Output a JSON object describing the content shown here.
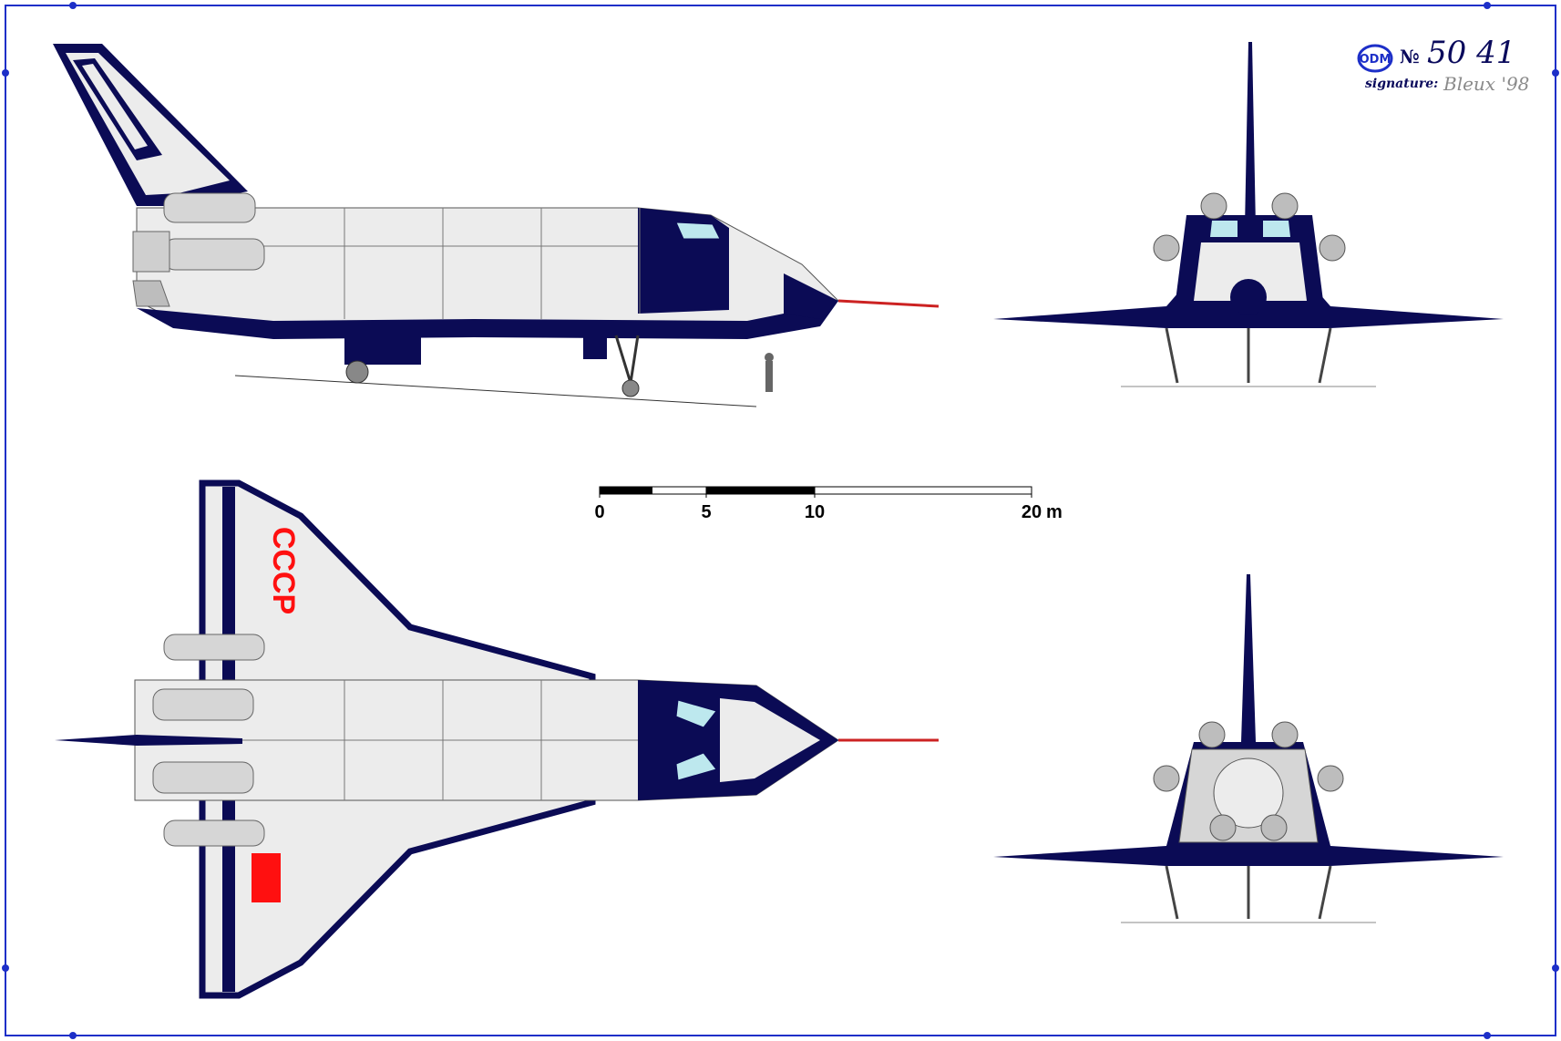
{
  "header": {
    "logo_text": "ODM",
    "number_prefix": "№",
    "number": "50 41",
    "signature_label": "signature:",
    "signature": "Bleux '98"
  },
  "scale_bar": {
    "ticks": [
      "0",
      "5",
      "10",
      "20"
    ],
    "unit": "m"
  },
  "markings": {
    "wing_text": "СССР"
  },
  "colors": {
    "frame": "#1d2fc8",
    "dark_blue": "#0b0b55",
    "light_grey": "#ececec",
    "flag_red": "#ff1010",
    "accent_yellow": "#e8b020"
  }
}
